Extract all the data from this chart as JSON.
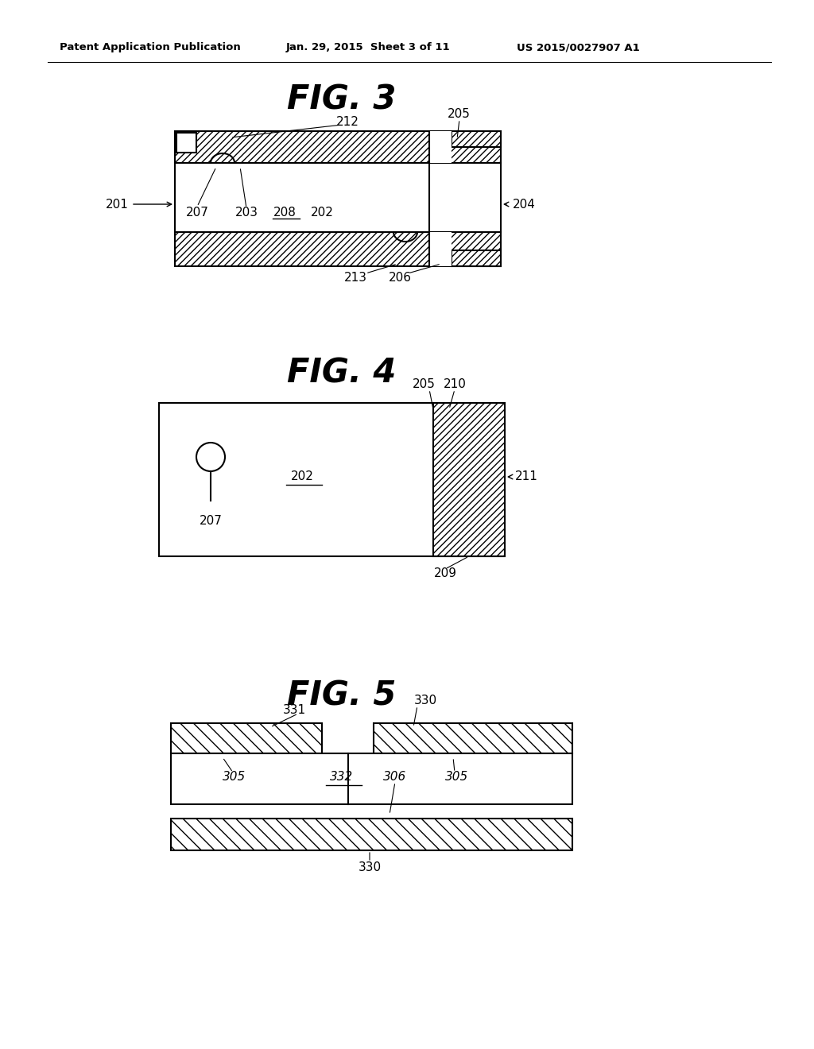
{
  "title_header_left": "Patent Application Publication",
  "title_header_mid": "Jan. 29, 2015  Sheet 3 of 11",
  "title_header_right": "US 2015/0027907 A1",
  "fig3_title": "FIG. 3",
  "fig4_title": "FIG. 4",
  "fig5_title": "FIG. 5",
  "bg_color": "#ffffff",
  "line_color": "#000000"
}
